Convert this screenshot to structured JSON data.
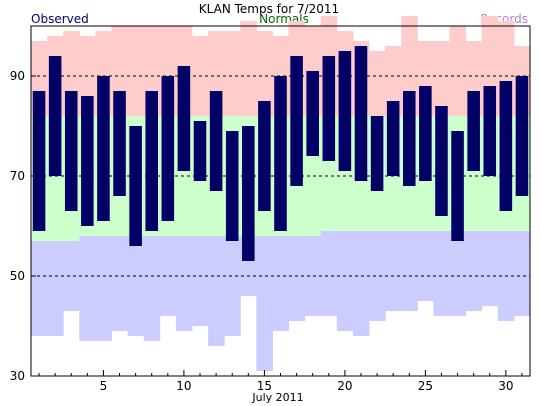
{
  "chart_data": {
    "type": "bar",
    "title": "KLAN Temps for 7/2011",
    "xlabel": "July 2011",
    "ylabel": "",
    "legend": {
      "observed": "Observed",
      "normals": "Normals",
      "records": "Records"
    },
    "colors": {
      "observed": "#000066",
      "normals": "#ccffcc",
      "record_high": "#ffcccc",
      "record_low": "#ccccff",
      "frame": "#000000",
      "gridline": "#000000"
    },
    "ylim": [
      30,
      100
    ],
    "yticks": [
      30,
      50,
      70,
      90
    ],
    "gridlines": [
      50,
      70,
      90
    ],
    "xticks": [
      5,
      10,
      15,
      20,
      25,
      30
    ],
    "days": [
      1,
      2,
      3,
      4,
      5,
      6,
      7,
      8,
      9,
      10,
      11,
      12,
      13,
      14,
      15,
      16,
      17,
      18,
      19,
      20,
      21,
      22,
      23,
      24,
      25,
      26,
      27,
      28,
      29,
      30,
      31
    ],
    "observed_high": [
      87,
      94,
      87,
      86,
      90,
      87,
      80,
      87,
      90,
      92,
      81,
      87,
      79,
      80,
      85,
      90,
      94,
      91,
      94,
      95,
      96,
      82,
      85,
      87,
      88,
      84,
      79,
      87,
      88,
      89,
      90
    ],
    "observed_low": [
      59,
      70,
      63,
      60,
      61,
      66,
      56,
      59,
      61,
      71,
      69,
      67,
      57,
      53,
      63,
      59,
      68,
      74,
      73,
      71,
      69,
      67,
      70,
      68,
      69,
      62,
      57,
      71,
      70,
      63,
      66
    ],
    "normal_high": [
      82,
      82,
      82,
      82,
      82,
      82,
      82,
      82,
      82,
      82,
      82,
      82,
      82,
      82,
      82,
      82,
      82,
      82,
      82,
      82,
      82,
      82,
      82,
      82,
      82,
      82,
      82,
      82,
      82,
      82,
      82
    ],
    "normal_low": [
      57,
      57,
      57,
      58,
      58,
      58,
      58,
      58,
      58,
      58,
      58,
      58,
      58,
      58,
      58,
      58,
      58,
      58,
      59,
      59,
      59,
      59,
      59,
      59,
      59,
      59,
      59,
      59,
      59,
      59,
      59
    ],
    "record_high": [
      97,
      98,
      99,
      98,
      99,
      100,
      100,
      100,
      100,
      100,
      98,
      99,
      99,
      101,
      99,
      98,
      101,
      100,
      102,
      99,
      97,
      95,
      96,
      102,
      97,
      97,
      100,
      97,
      102,
      101,
      96
    ],
    "record_low": [
      38,
      38,
      43,
      37,
      37,
      39,
      38,
      37,
      42,
      39,
      40,
      36,
      38,
      46,
      31,
      39,
      41,
      42,
      42,
      39,
      38,
      41,
      43,
      43,
      45,
      42,
      42,
      43,
      44,
      41,
      42
    ]
  }
}
